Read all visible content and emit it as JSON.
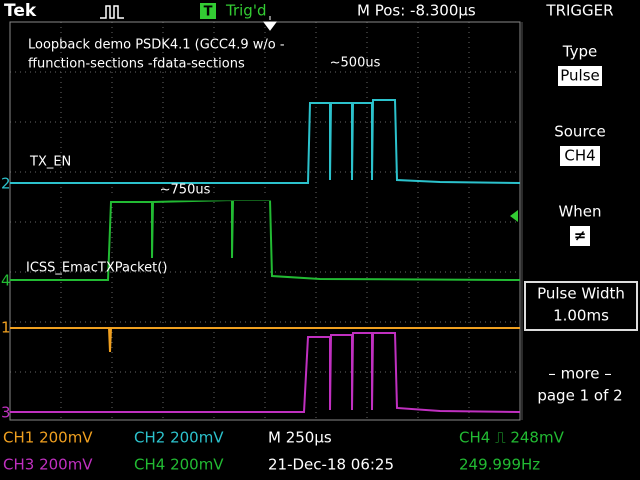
{
  "header": {
    "brand": "Tek",
    "trigger_icon": "T",
    "trigger_status": "Trig'd",
    "position": "M Pos: -8.300µs",
    "menu_title": "TRIGGER"
  },
  "annotations": {
    "note_line1": "Loopback demo PSDK4.1 (GCC4.9 w/o -",
    "note_line2": "ffunction-sections -fdata-sections",
    "width_tx": "~500us",
    "width_packet": "~750us",
    "label_tx": "TX_EN",
    "label_packet": "ICSS_EmacTXPacket()"
  },
  "channel_markers": [
    "2",
    "4",
    "1",
    "3"
  ],
  "menu": [
    {
      "label": "Type",
      "value": "Pulse"
    },
    {
      "label": "Source",
      "value": "CH4"
    },
    {
      "label": "When",
      "value": "≠"
    },
    {
      "label": "Pulse Width",
      "value": "1.00ms"
    },
    {
      "label": "– more –",
      "value": "page 1 of 2"
    }
  ],
  "status": {
    "ch1": "CH1 200mV",
    "ch2": "CH2 200mV",
    "timebase": "M 250µs",
    "trigger_level": "CH4 ⎍ 248mV",
    "ch3": "CH3 200mV",
    "ch4": "CH4 200mV",
    "date": "21-Dec-18 06:25",
    "frequency": "249.999Hz"
  }
}
